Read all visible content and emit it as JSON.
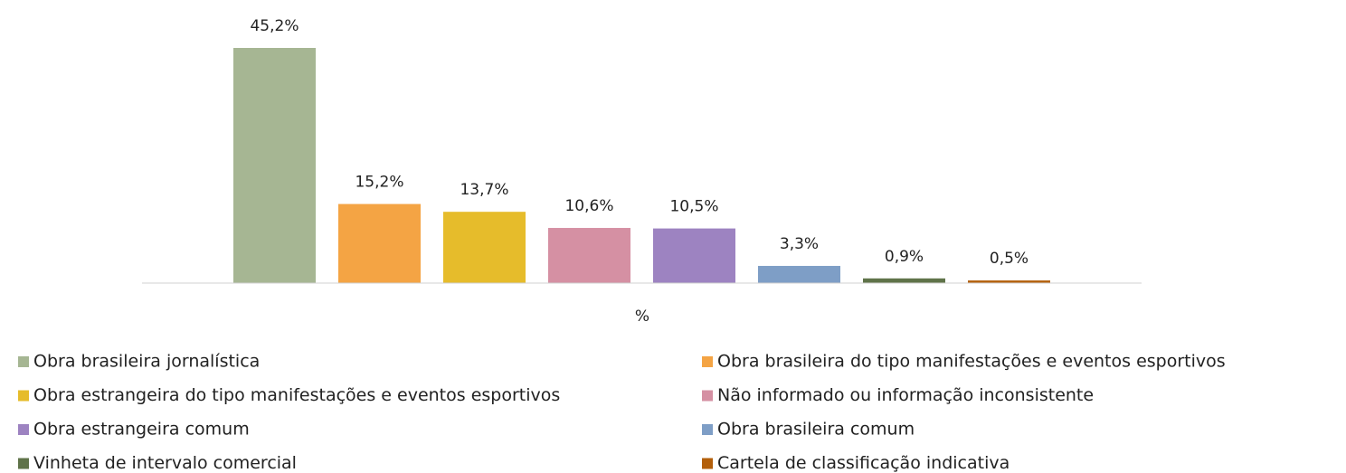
{
  "chart_data": {
    "type": "bar",
    "categories": [
      "%"
    ],
    "series": [
      {
        "name": "Obra brasileira jornalística",
        "color": "#a6b693",
        "values": [
          45.2
        ],
        "value_labels": [
          "45,2%"
        ]
      },
      {
        "name": "Obra brasileira do tipo manifestações e eventos esportivos",
        "color": "#f4a444",
        "values": [
          15.2
        ],
        "value_labels": [
          "15,2%"
        ]
      },
      {
        "name": "Obra estrangeira do tipo manifestações e eventos esportivos",
        "color": "#e6bc2b",
        "values": [
          13.7
        ],
        "value_labels": [
          "13,7%"
        ]
      },
      {
        "name": "Não informado ou informação inconsistente",
        "color": "#d590a3",
        "values": [
          10.6
        ],
        "value_labels": [
          "10,6%"
        ]
      },
      {
        "name": "Obra estrangeira comum",
        "color": "#9d83c1",
        "values": [
          10.5
        ],
        "value_labels": [
          "10,5%"
        ]
      },
      {
        "name": "Obra brasileira comum",
        "color": "#7e9ec6",
        "values": [
          3.3
        ],
        "value_labels": [
          "3,3%"
        ]
      },
      {
        "name": "Vinheta de intervalo comercial",
        "color": "#5f7349",
        "values": [
          0.9
        ],
        "value_labels": [
          "0,9%"
        ]
      },
      {
        "name": "Cartela de classificação indicativa",
        "color": "#b35f0a",
        "values": [
          0.5
        ],
        "value_labels": [
          "0,5%"
        ]
      }
    ],
    "legend": "bottom"
  }
}
